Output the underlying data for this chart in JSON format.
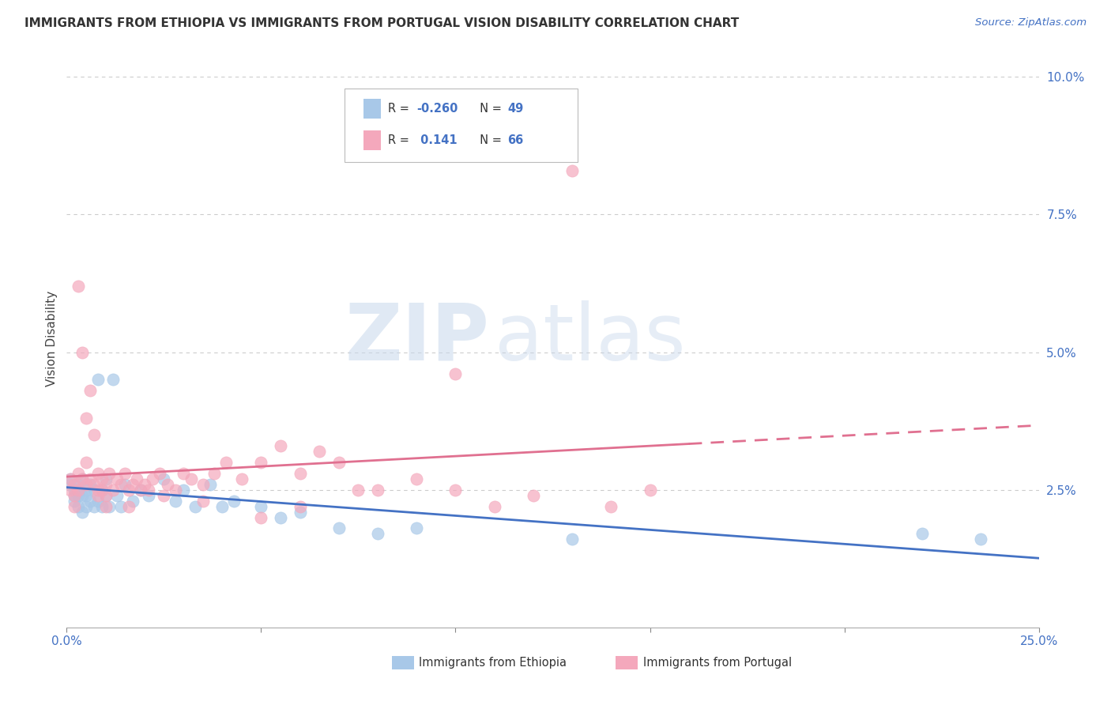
{
  "title": "IMMIGRANTS FROM ETHIOPIA VS IMMIGRANTS FROM PORTUGAL VISION DISABILITY CORRELATION CHART",
  "source": "Source: ZipAtlas.com",
  "ylabel": "Vision Disability",
  "xlim": [
    0.0,
    0.25
  ],
  "ylim": [
    0.0,
    0.105
  ],
  "color_ethiopia": "#a8c8e8",
  "color_portugal": "#f4a8bc",
  "color_trendline_ethiopia": "#4472c4",
  "color_trendline_portugal": "#e07090",
  "watermark_zip": "ZIP",
  "watermark_atlas": "atlas",
  "legend_r1": "-0.260",
  "legend_n1": "49",
  "legend_r2": "0.141",
  "legend_n2": "66",
  "eth_x": [
    0.001,
    0.001,
    0.002,
    0.002,
    0.002,
    0.003,
    0.003,
    0.003,
    0.003,
    0.004,
    0.004,
    0.004,
    0.005,
    0.005,
    0.005,
    0.006,
    0.006,
    0.007,
    0.007,
    0.008,
    0.008,
    0.009,
    0.009,
    0.01,
    0.01,
    0.011,
    0.012,
    0.013,
    0.014,
    0.015,
    0.017,
    0.019,
    0.021,
    0.025,
    0.028,
    0.03,
    0.033,
    0.037,
    0.04,
    0.043,
    0.05,
    0.055,
    0.06,
    0.07,
    0.08,
    0.09,
    0.13,
    0.22,
    0.235
  ],
  "eth_y": [
    0.027,
    0.026,
    0.025,
    0.024,
    0.023,
    0.026,
    0.025,
    0.024,
    0.022,
    0.027,
    0.024,
    0.021,
    0.025,
    0.024,
    0.022,
    0.026,
    0.023,
    0.025,
    0.022,
    0.045,
    0.023,
    0.025,
    0.022,
    0.027,
    0.024,
    0.022,
    0.045,
    0.024,
    0.022,
    0.026,
    0.023,
    0.025,
    0.024,
    0.027,
    0.023,
    0.025,
    0.022,
    0.026,
    0.022,
    0.023,
    0.022,
    0.02,
    0.021,
    0.018,
    0.017,
    0.018,
    0.016,
    0.017,
    0.016
  ],
  "port_x": [
    0.001,
    0.001,
    0.002,
    0.002,
    0.002,
    0.003,
    0.003,
    0.003,
    0.004,
    0.004,
    0.005,
    0.005,
    0.005,
    0.006,
    0.006,
    0.007,
    0.007,
    0.008,
    0.008,
    0.009,
    0.009,
    0.01,
    0.01,
    0.011,
    0.012,
    0.013,
    0.014,
    0.015,
    0.016,
    0.017,
    0.018,
    0.019,
    0.02,
    0.021,
    0.022,
    0.024,
    0.026,
    0.028,
    0.03,
    0.032,
    0.035,
    0.038,
    0.041,
    0.045,
    0.05,
    0.055,
    0.06,
    0.065,
    0.07,
    0.08,
    0.09,
    0.1,
    0.11,
    0.12,
    0.13,
    0.14,
    0.15,
    0.1,
    0.075,
    0.06,
    0.05,
    0.035,
    0.025,
    0.016,
    0.01,
    0.008
  ],
  "port_y": [
    0.027,
    0.025,
    0.026,
    0.024,
    0.022,
    0.062,
    0.028,
    0.025,
    0.05,
    0.027,
    0.038,
    0.03,
    0.026,
    0.043,
    0.027,
    0.035,
    0.026,
    0.028,
    0.024,
    0.027,
    0.025,
    0.026,
    0.024,
    0.028,
    0.025,
    0.027,
    0.026,
    0.028,
    0.025,
    0.026,
    0.027,
    0.025,
    0.026,
    0.025,
    0.027,
    0.028,
    0.026,
    0.025,
    0.028,
    0.027,
    0.026,
    0.028,
    0.03,
    0.027,
    0.03,
    0.033,
    0.028,
    0.032,
    0.03,
    0.025,
    0.027,
    0.025,
    0.022,
    0.024,
    0.083,
    0.022,
    0.025,
    0.046,
    0.025,
    0.022,
    0.02,
    0.023,
    0.024,
    0.022,
    0.022,
    0.025
  ]
}
